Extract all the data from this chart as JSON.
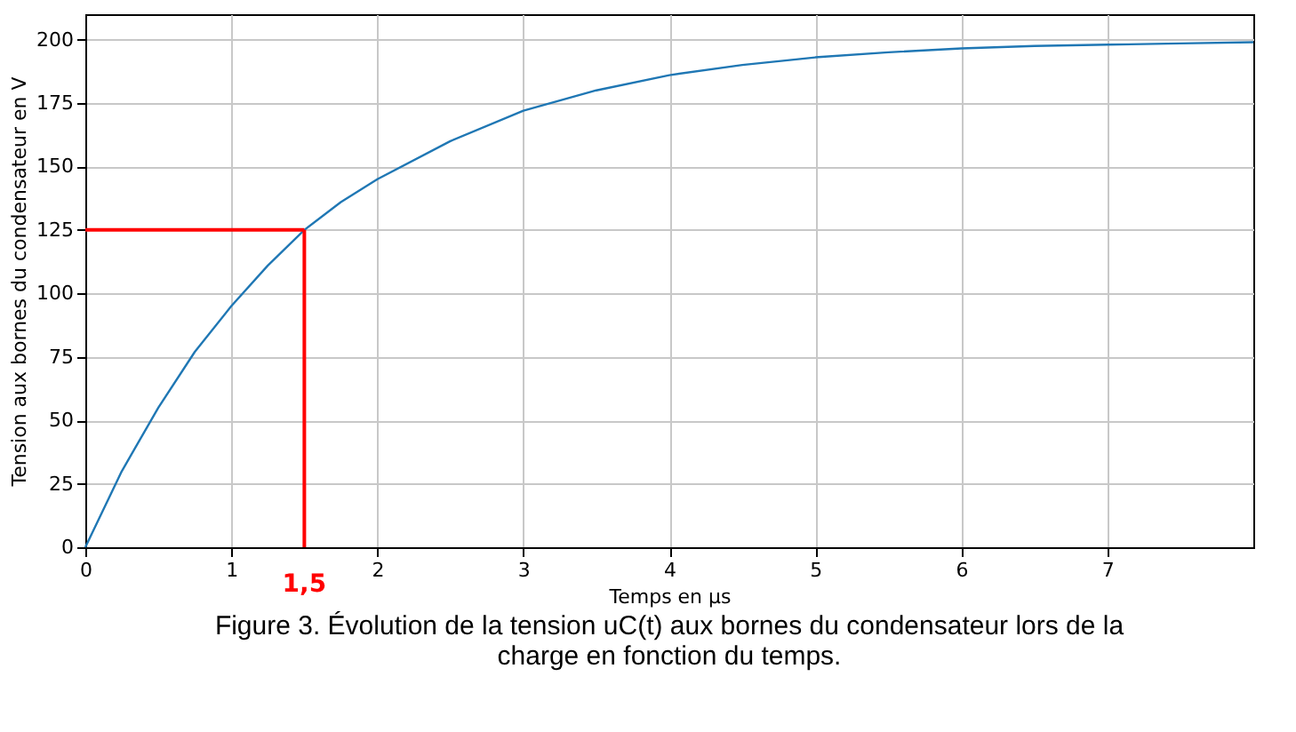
{
  "chart_data": {
    "type": "line",
    "xlabel": "Temps en µs",
    "ylabel": "Tension aux bornes du condensateur en V",
    "x": [
      0,
      0.25,
      0.5,
      0.75,
      1,
      1.25,
      1.5,
      1.75,
      2,
      2.5,
      3,
      3.5,
      4,
      4.5,
      5,
      5.5,
      6,
      6.5,
      7,
      7.5,
      8
    ],
    "series": [
      {
        "color": "#1f77b4",
        "values": [
          0,
          30,
          55,
          77,
          95,
          111,
          125,
          136,
          145,
          160,
          172,
          180,
          186,
          190,
          193,
          195,
          196.5,
          197.5,
          198,
          198.5,
          199
        ]
      }
    ],
    "xlim": [
      0,
      8
    ],
    "xticks": [
      0,
      1,
      2,
      3,
      4,
      5,
      6,
      7
    ],
    "ylim": [
      0,
      210
    ],
    "yticks": [
      0,
      25,
      50,
      75,
      100,
      125,
      150,
      175,
      200
    ],
    "grid": true,
    "marker": "none",
    "line_style": "solid",
    "ref_lines": [
      {
        "axis": "x",
        "value": 1.5,
        "label": "1,5",
        "color": "#ff0000"
      },
      {
        "axis": "y",
        "value": 125,
        "color": "#ff0000"
      }
    ],
    "annotations": [
      "Figure 3. Évolution de la tension uC(t) aux bornes du condensateur lors de la charge en fonction du temps."
    ]
  }
}
